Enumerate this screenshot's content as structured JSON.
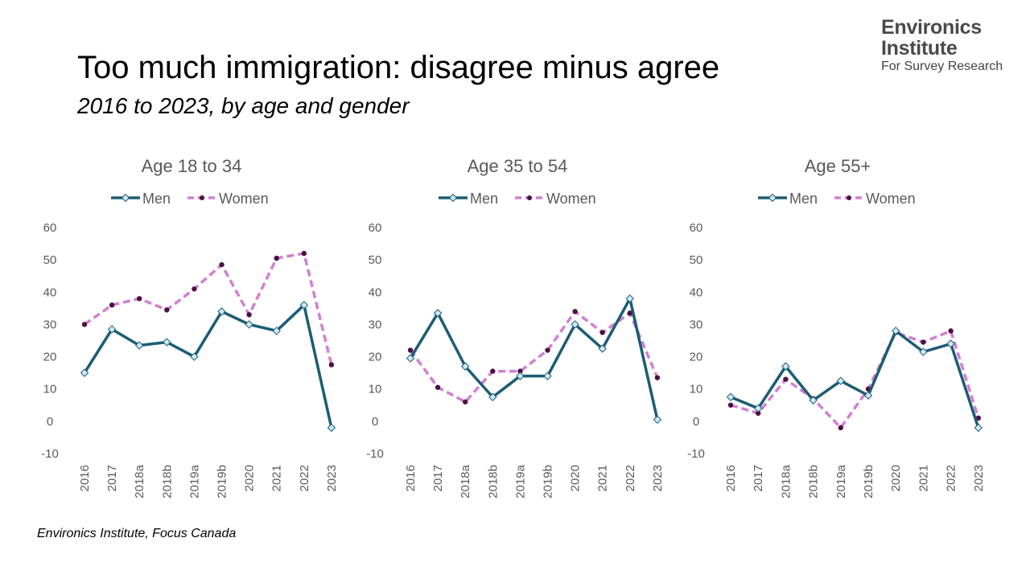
{
  "header": {
    "title": "Too much immigration: disagree minus agree",
    "subtitle": "2016 to 2023, by age and gender"
  },
  "logo": {
    "line1": "Environics",
    "line2": "Institute",
    "line3": "For Survey Research"
  },
  "source": "Environics Institute, Focus Canada",
  "colors": {
    "men": "#1b5c74",
    "women": "#d27fd0",
    "women_marker": "#4b0f45",
    "men_marker_fill": "#cfe9f5",
    "axis_text": "#595959",
    "title_text": "#595959"
  },
  "chart_data": [
    {
      "type": "line",
      "title": "Age 18 to 34",
      "categories": [
        "2016",
        "2017",
        "2018a",
        "2018b",
        "2019a",
        "2019b",
        "2020",
        "2021",
        "2022",
        "2023"
      ],
      "ylim": [
        -10,
        60
      ],
      "yticks": [
        60,
        50,
        40,
        30,
        20,
        10,
        0,
        -10
      ],
      "legend": "top",
      "grid": false,
      "series": [
        {
          "name": "Men",
          "values": [
            15,
            28.5,
            23.5,
            24.5,
            20,
            34,
            30,
            28,
            36,
            -2
          ]
        },
        {
          "name": "Women",
          "values": [
            30,
            36,
            38,
            34.5,
            41,
            48.5,
            33,
            50.5,
            52,
            17.5
          ]
        }
      ]
    },
    {
      "type": "line",
      "title": "Age 35 to 54",
      "categories": [
        "2016",
        "2017",
        "2018a",
        "2018b",
        "2019a",
        "2019b",
        "2020",
        "2021",
        "2022",
        "2023"
      ],
      "ylim": [
        -10,
        60
      ],
      "yticks": [
        60,
        50,
        40,
        30,
        20,
        10,
        0,
        -10
      ],
      "legend": "top",
      "grid": false,
      "series": [
        {
          "name": "Men",
          "values": [
            19.5,
            33.5,
            17,
            7.5,
            14,
            14,
            30,
            22.5,
            38,
            0.5
          ]
        },
        {
          "name": "Women",
          "values": [
            22,
            10.5,
            6,
            15.5,
            15.5,
            22,
            34,
            27.5,
            33.5,
            13.5
          ]
        }
      ]
    },
    {
      "type": "line",
      "title": "Age 55+",
      "categories": [
        "2016",
        "2017",
        "2018a",
        "2018b",
        "2019a",
        "2019b",
        "2020",
        "2021",
        "2022",
        "2023"
      ],
      "ylim": [
        -10,
        60
      ],
      "yticks": [
        60,
        50,
        40,
        30,
        20,
        10,
        0,
        -10
      ],
      "legend": "top",
      "grid": false,
      "series": [
        {
          "name": "Men",
          "values": [
            7.5,
            4,
            17,
            6.5,
            12.5,
            8,
            28,
            21.5,
            24,
            -2
          ]
        },
        {
          "name": "Women",
          "values": [
            5,
            2.5,
            13,
            7,
            -2,
            10,
            27.5,
            24.5,
            28,
            1
          ]
        }
      ]
    }
  ]
}
